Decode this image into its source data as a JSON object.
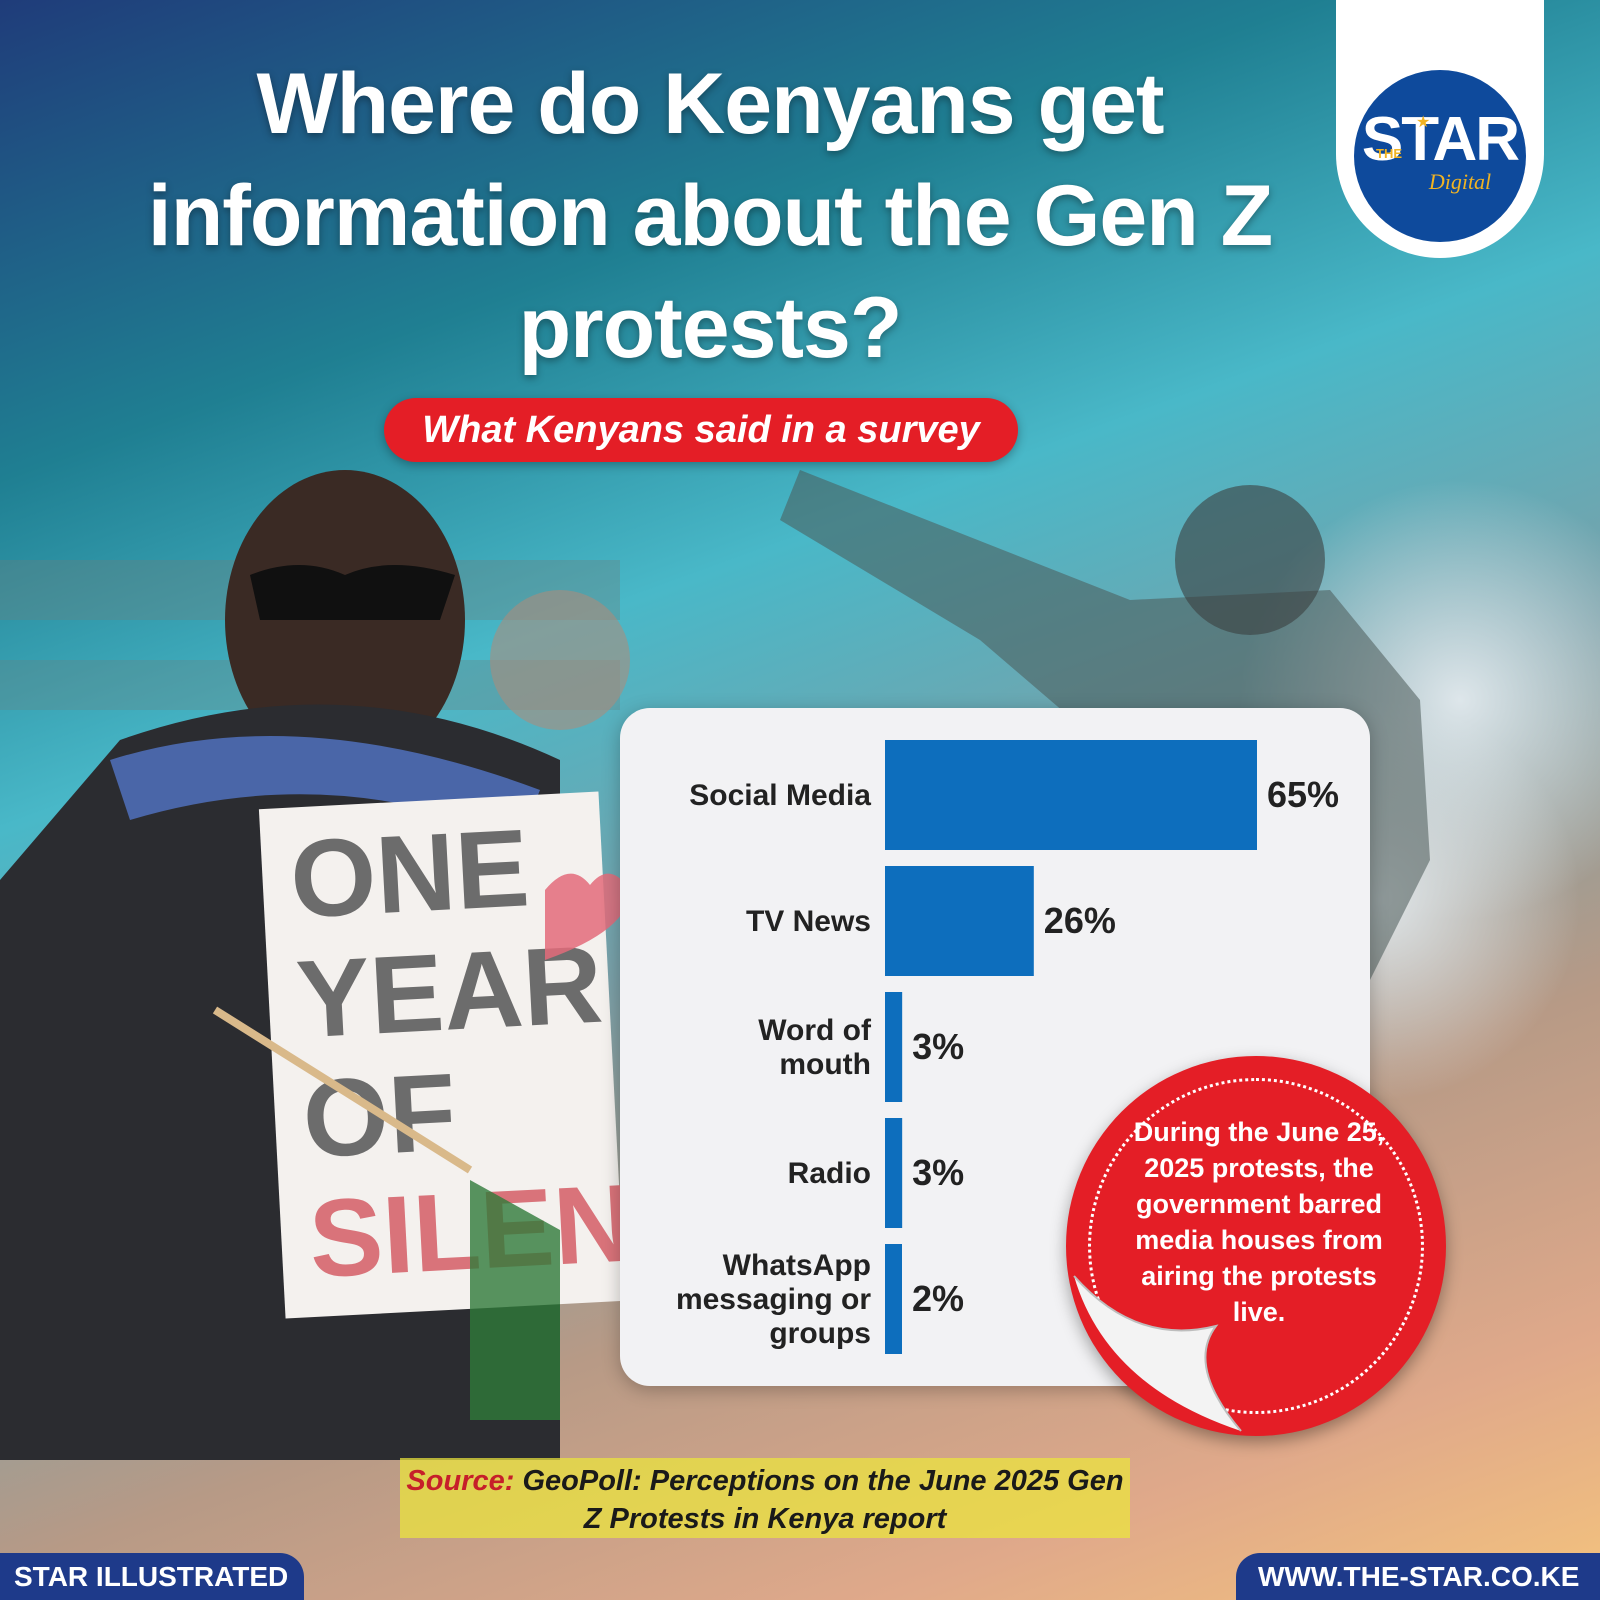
{
  "headline": "Where do Kenyans get information about the Gen Z protests?",
  "subtitle": "What Kenyans said in a survey",
  "logo": {
    "top": "THE",
    "word": "STAR",
    "sub": "Digital",
    "brand_color": "#0e4a9c",
    "accent_color": "#f0b323"
  },
  "chart_data": {
    "type": "bar",
    "orientation": "horizontal",
    "categories": [
      "Social Media",
      "TV News",
      "Word of mouth",
      "Radio",
      "WhatsApp messaging or groups"
    ],
    "category_lines": [
      [
        "Social Media"
      ],
      [
        "TV News"
      ],
      [
        "Word of",
        "mouth"
      ],
      [
        "Radio"
      ],
      [
        "WhatsApp",
        "messaging or",
        "groups"
      ]
    ],
    "values": [
      65,
      26,
      3,
      3,
      2
    ],
    "value_labels": [
      "65%",
      "26%",
      "3%",
      "3%",
      "2%"
    ],
    "unit": "%",
    "bar_color": "#0d6ebd",
    "xlim": [
      0,
      65
    ],
    "grid": false,
    "legend": "none"
  },
  "callout": {
    "text": "During the June 25, 2025 protests, the government barred media houses from airing the protests live.",
    "color": "#e41e26"
  },
  "source": {
    "prefix": "Source:",
    "text": " GeoPoll: Perceptions on the June 2025 Gen Z Protests in Kenya report"
  },
  "footer": {
    "left": "STAR ILLUSTRATED",
    "right": "WWW.THE-STAR.CO.KE"
  }
}
